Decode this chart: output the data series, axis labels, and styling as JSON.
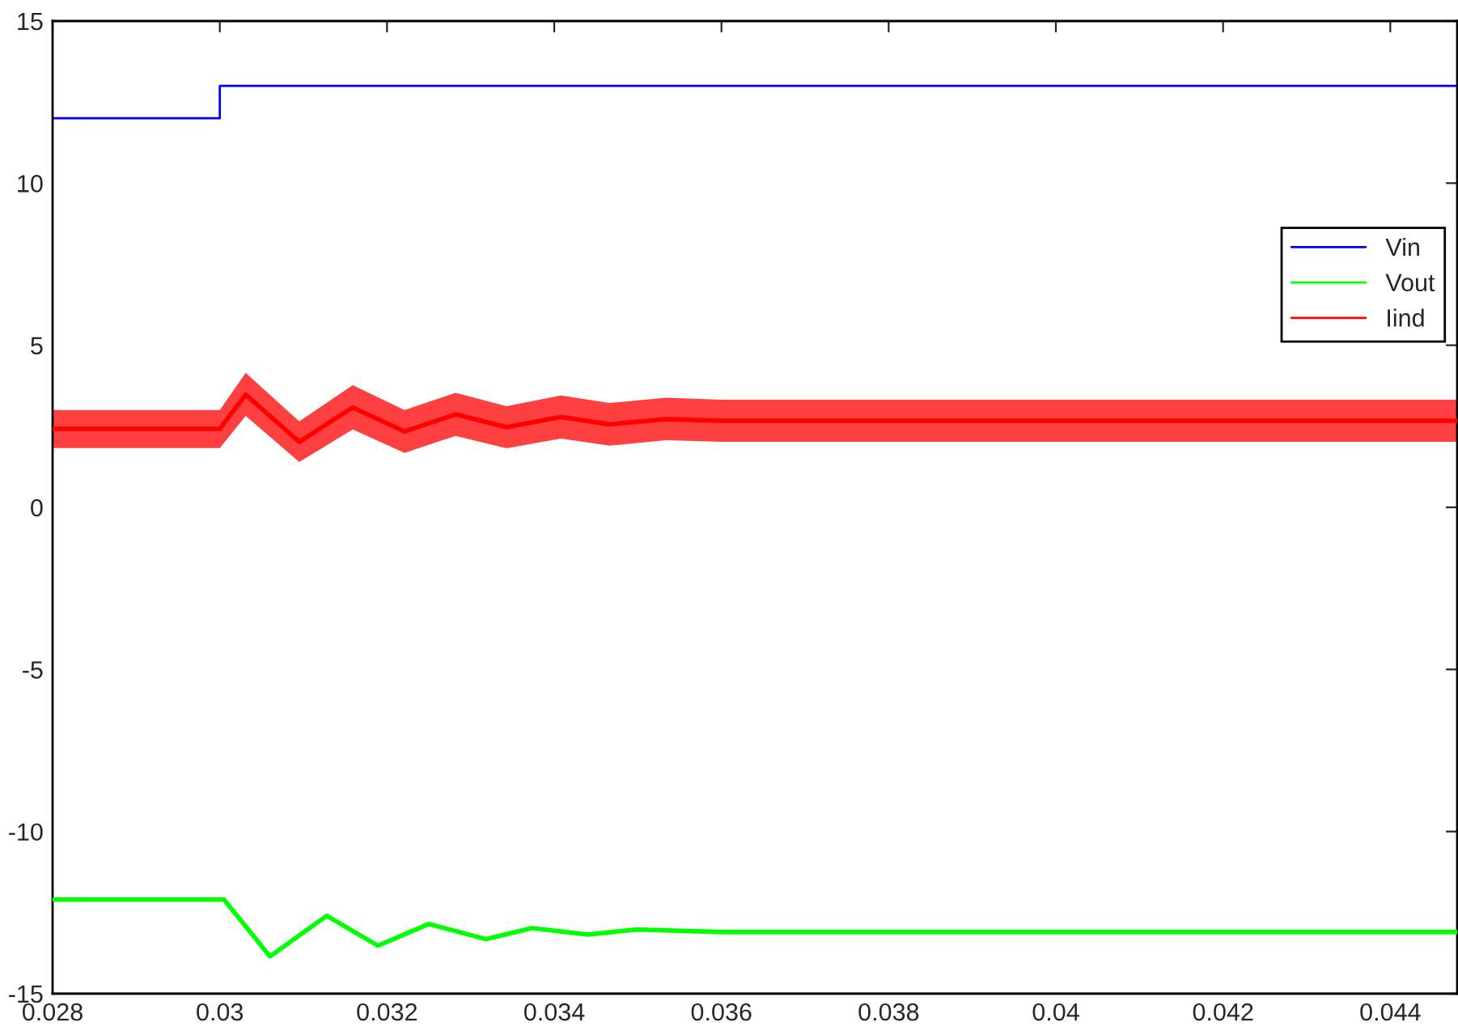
{
  "chart_data": {
    "type": "line",
    "xlim": [
      0.028,
      0.0448
    ],
    "xticks": [
      0.028,
      0.03,
      0.032,
      0.034,
      0.036,
      0.038,
      0.04,
      0.042,
      0.044
    ],
    "ylim": [
      -15,
      15
    ],
    "yticks": [
      -15,
      -10,
      -5,
      0,
      5,
      10,
      15
    ],
    "grid": false,
    "legend": "top right",
    "line_style": "solid",
    "marker": "none",
    "series": [
      {
        "name": "Vin",
        "type": "step",
        "color": "#0000ff",
        "x": [
          0.028,
          0.03,
          0.0448
        ],
        "values": [
          12,
          13,
          13
        ]
      },
      {
        "name": "Vout",
        "color": "#00ff00",
        "x": [
          0.028,
          0.029,
          0.03,
          0.03005,
          0.0306,
          0.03128,
          0.03189,
          0.0325,
          0.03318,
          0.03373,
          0.0344,
          0.03499,
          0.036,
          0.038,
          0.04,
          0.042,
          0.0448
        ],
        "values": [
          -12.1,
          -12.1,
          -12.1,
          -12.1,
          -13.85,
          -12.6,
          -13.52,
          -12.85,
          -13.32,
          -12.98,
          -13.18,
          -13.02,
          -13.1,
          -13.1,
          -13.1,
          -13.1,
          -13.1
        ]
      },
      {
        "name": "Iind",
        "color": "#ff0000",
        "x": [
          0.028,
          0.03,
          0.03031,
          0.03095,
          0.03159,
          0.03221,
          0.03282,
          0.03343,
          0.03408,
          0.03466,
          0.03534,
          0.036,
          0.038,
          0.04,
          0.042,
          0.0448
        ],
        "values": [
          2.42,
          2.42,
          3.48,
          2.02,
          3.08,
          2.34,
          2.87,
          2.47,
          2.79,
          2.56,
          2.72,
          2.67,
          2.67,
          2.67,
          2.67,
          2.67
        ],
        "lower": [
          1.83,
          1.83,
          2.82,
          1.4,
          2.4,
          1.68,
          2.2,
          1.82,
          2.12,
          1.9,
          2.07,
          2.02,
          2.02,
          2.02,
          2.02,
          2.02
        ],
        "upper": [
          3.0,
          3.0,
          4.15,
          2.65,
          3.77,
          3.0,
          3.53,
          3.12,
          3.45,
          3.22,
          3.38,
          3.32,
          3.32,
          3.32,
          3.32,
          3.32
        ]
      }
    ]
  }
}
